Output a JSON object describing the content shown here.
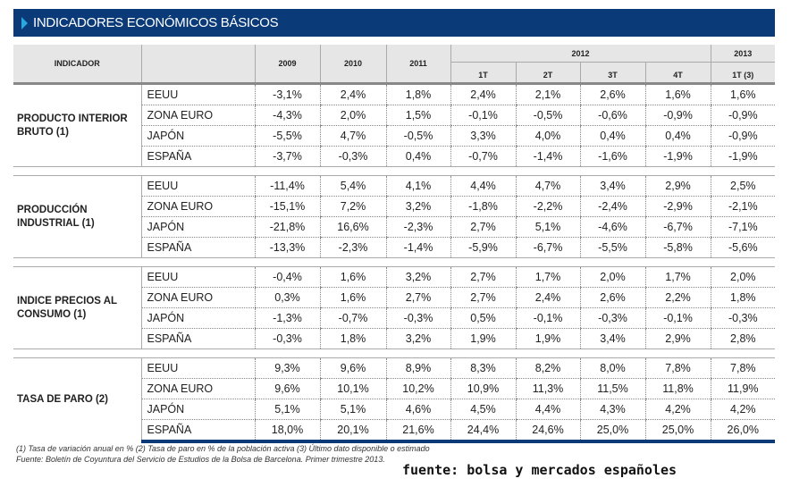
{
  "title": "INDICADORES ECONÓMICOS BÁSICOS",
  "header": {
    "indicador": "INDICADOR",
    "years": [
      "2009",
      "2010",
      "2011"
    ],
    "year2012": "2012",
    "year2013": "2013",
    "quarters": [
      "1T",
      "2T",
      "3T",
      "4T"
    ],
    "q2013": "1T (3)"
  },
  "groups": [
    {
      "name": "PRODUCTO INTERIOR BRUTO (1)",
      "rows": [
        {
          "country": "EEUU",
          "values": [
            "-3,1%",
            "2,4%",
            "1,8%",
            "2,4%",
            "2,1%",
            "2,6%",
            "1,6%",
            "1,6%"
          ]
        },
        {
          "country": "ZONA EURO",
          "values": [
            "-4,3%",
            "2,0%",
            "1,5%",
            "-0,1%",
            "-0,5%",
            "-0,6%",
            "-0,9%",
            "-0,9%"
          ]
        },
        {
          "country": "JAPÓN",
          "values": [
            "-5,5%",
            "4,7%",
            "-0,5%",
            "3,3%",
            "4,0%",
            "0,4%",
            "0,4%",
            "-0,9%"
          ]
        },
        {
          "country": "ESPAÑA",
          "values": [
            "-3,7%",
            "-0,3%",
            "0,4%",
            "-0,7%",
            "-1,4%",
            "-1,6%",
            "-1,9%",
            "-1,9%"
          ]
        }
      ]
    },
    {
      "name": "PRODUCCIÓN INDUSTRIAL (1)",
      "rows": [
        {
          "country": "EEUU",
          "values": [
            "-11,4%",
            "5,4%",
            "4,1%",
            "4,4%",
            "4,7%",
            "3,4%",
            "2,9%",
            "2,5%"
          ]
        },
        {
          "country": "ZONA EURO",
          "values": [
            "-15,1%",
            "7,2%",
            "3,2%",
            "-1,8%",
            "-2,2%",
            "-2,4%",
            "-2,9%",
            "-2,1%"
          ]
        },
        {
          "country": "JAPÓN",
          "values": [
            "-21,8%",
            "16,6%",
            "-2,3%",
            "2,7%",
            "5,1%",
            "-4,6%",
            "-6,7%",
            "-7,1%"
          ]
        },
        {
          "country": "ESPAÑA",
          "values": [
            "-13,3%",
            "-2,3%",
            "-1,4%",
            "-5,9%",
            "-6,7%",
            "-5,5%",
            "-5,8%",
            "-5,6%"
          ]
        }
      ]
    },
    {
      "name": "INDICE PRECIOS AL CONSUMO (1)",
      "rows": [
        {
          "country": "EEUU",
          "values": [
            "-0,4%",
            "1,6%",
            "3,2%",
            "2,7%",
            "1,7%",
            "2,0%",
            "1,7%",
            "2,0%"
          ]
        },
        {
          "country": "ZONA EURO",
          "values": [
            "0,3%",
            "1,6%",
            "2,7%",
            "2,7%",
            "2,4%",
            "2,6%",
            "2,2%",
            "1,8%"
          ]
        },
        {
          "country": "JAPÓN",
          "values": [
            "-1,3%",
            "-0,7%",
            "-0,3%",
            "0,5%",
            "-0,1%",
            "-0,3%",
            "-0,1%",
            "-0,3%"
          ]
        },
        {
          "country": "ESPAÑA",
          "values": [
            "-0,3%",
            "1,8%",
            "3,2%",
            "1,9%",
            "1,9%",
            "3,4%",
            "2,9%",
            "2,8%"
          ]
        }
      ]
    },
    {
      "name": "TASA DE PARO (2)",
      "rows": [
        {
          "country": "EEUU",
          "values": [
            "9,3%",
            "9,6%",
            "8,9%",
            "8,3%",
            "8,2%",
            "8,0%",
            "7,8%",
            "7,8%"
          ]
        },
        {
          "country": "ZONA EURO",
          "values": [
            "9,6%",
            "10,1%",
            "10,2%",
            "10,9%",
            "11,3%",
            "11,5%",
            "11,8%",
            "11,9%"
          ]
        },
        {
          "country": "JAPÓN",
          "values": [
            "5,1%",
            "5,1%",
            "4,6%",
            "4,5%",
            "4,4%",
            "4,3%",
            "4,2%",
            "4,2%"
          ]
        },
        {
          "country": "ESPAÑA",
          "values": [
            "18,0%",
            "20,1%",
            "21,6%",
            "24,4%",
            "24,6%",
            "25,0%",
            "25,0%",
            "26,0%"
          ]
        }
      ]
    }
  ],
  "notes": [
    "(1) Tasa de variación anual en % (2) Tasa de paro en % de la población activa  (3) Último dato disponible o estimado",
    "Fuente: Boletín de Coyuntura del Servicio de Estudios de la Bolsa de Barcelona. Primer trimestre 2013."
  ],
  "source": "fuente: bolsa y mercados españoles"
}
